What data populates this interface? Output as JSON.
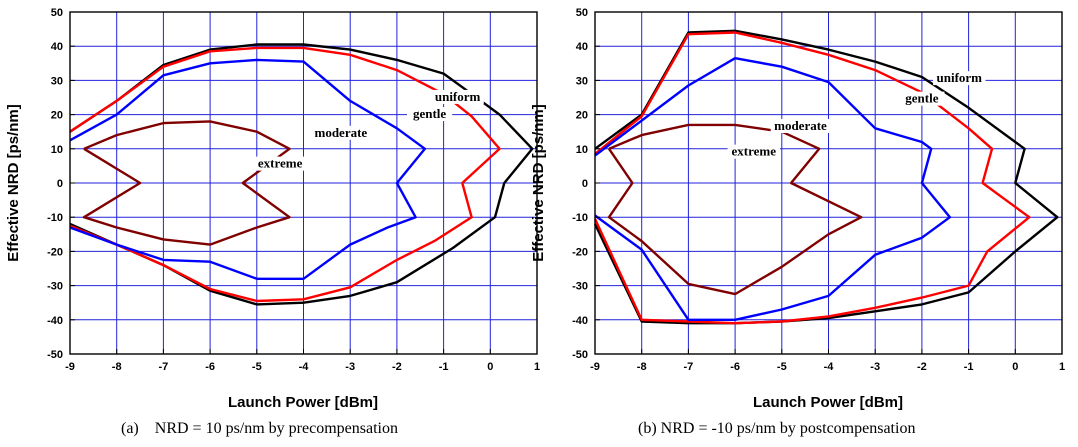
{
  "chart_data": [
    {
      "type": "line",
      "xlabel": "Launch Power [dBm]",
      "ylabel": "Effective NRD [ps/nm]",
      "xlim": [
        -9,
        1
      ],
      "ylim": [
        -50,
        50
      ],
      "xticks": [
        "-9",
        "-8",
        "-7",
        "-6",
        "-5",
        "-4",
        "-3",
        "-2",
        "-1",
        "0",
        "1"
      ],
      "yticks": [
        "50",
        "40",
        "30",
        "20",
        "10",
        "0",
        "-10",
        "-20",
        "-30",
        "-40",
        "-50"
      ],
      "grid": true,
      "caption": "(a)    NRD = 10 ps/nm by precompensation",
      "series": [
        {
          "name": "uniform",
          "color": "#000000",
          "label_at": [
            -0.7,
            24
          ],
          "points": [
            [
              -9,
              15
            ],
            [
              -8,
              24
            ],
            [
              -7,
              34.5
            ],
            [
              -6,
              39
            ],
            [
              -5,
              40.5
            ],
            [
              -4,
              40.5
            ],
            [
              -3,
              39
            ],
            [
              -2,
              36
            ],
            [
              -1,
              32
            ],
            [
              -0.6,
              28
            ],
            [
              0.2,
              20
            ],
            [
              0.9,
              10
            ],
            [
              0.3,
              0
            ],
            [
              0.1,
              -10
            ],
            [
              -0.8,
              -19
            ],
            [
              -2,
              -29
            ],
            [
              -3,
              -33
            ],
            [
              -4,
              -35
            ],
            [
              -5,
              -35.5
            ],
            [
              -6,
              -31.5
            ],
            [
              -7,
              -24
            ],
            [
              -8,
              -18
            ],
            [
              -9,
              -12
            ]
          ]
        },
        {
          "name": "gentle",
          "color": "#ff0000",
          "label_at": [
            -1.3,
            19
          ],
          "points": [
            [
              -9,
              15
            ],
            [
              -8,
              24
            ],
            [
              -7,
              34
            ],
            [
              -6,
              38.5
            ],
            [
              -5,
              39.5
            ],
            [
              -4,
              39.5
            ],
            [
              -3,
              37.5
            ],
            [
              -2,
              33
            ],
            [
              -1,
              26
            ],
            [
              -0.4,
              19.5
            ],
            [
              0.2,
              10
            ],
            [
              -0.6,
              0
            ],
            [
              -0.4,
              -10
            ],
            [
              -1.2,
              -17
            ],
            [
              -2,
              -22.5
            ],
            [
              -3,
              -30.5
            ],
            [
              -4,
              -34
            ],
            [
              -5,
              -34.5
            ],
            [
              -6,
              -31
            ],
            [
              -7,
              -24
            ],
            [
              -8,
              -18
            ],
            [
              -9,
              -12.5
            ]
          ]
        },
        {
          "name": "moderate",
          "color": "#0000ff",
          "label_at": [
            -3.2,
            13.5
          ],
          "points": [
            [
              -9,
              12.5
            ],
            [
              -8,
              20
            ],
            [
              -7,
              31.5
            ],
            [
              -6,
              35
            ],
            [
              -5,
              36
            ],
            [
              -4,
              35.5
            ],
            [
              -3,
              24
            ],
            [
              -2,
              16
            ],
            [
              -1.4,
              10
            ],
            [
              -2,
              0
            ],
            [
              -1.6,
              -10
            ],
            [
              -2.2,
              -13
            ],
            [
              -3,
              -18
            ],
            [
              -4,
              -28
            ],
            [
              -5,
              -28
            ],
            [
              -6,
              -23
            ],
            [
              -7,
              -22.5
            ],
            [
              -8,
              -18
            ],
            [
              -9,
              -13
            ]
          ]
        },
        {
          "name": "extreme",
          "color": "#800000",
          "label_at": [
            -4.5,
            4.5
          ],
          "points": [
            [
              -8.7,
              10
            ],
            [
              -8,
              14
            ],
            [
              -7,
              17.5
            ],
            [
              -6,
              18
            ],
            [
              -5,
              15
            ],
            [
              -4.3,
              10
            ],
            [
              -5.3,
              0
            ],
            [
              -4.3,
              -10
            ],
            [
              -5,
              -13
            ],
            [
              -6,
              -18
            ],
            [
              -7,
              -16.5
            ],
            [
              -8,
              -13
            ],
            [
              -8.7,
              -10
            ],
            [
              -7.5,
              0
            ],
            [
              -8.7,
              10
            ]
          ]
        }
      ]
    },
    {
      "type": "line",
      "xlabel": "Launch Power [dBm]",
      "ylabel": "Effective NRD [ps/nm]",
      "xlim": [
        -9,
        1
      ],
      "ylim": [
        -50,
        50
      ],
      "xticks": [
        "-9",
        "-8",
        "-7",
        "-6",
        "-5",
        "-4",
        "-3",
        "-2",
        "-1",
        "0",
        "1"
      ],
      "yticks": [
        "50",
        "40",
        "30",
        "20",
        "10",
        "0",
        "-10",
        "-20",
        "-30",
        "-40",
        "-50"
      ],
      "grid": true,
      "caption": "(b) NRD = -10 ps/nm by postcompensation",
      "series": [
        {
          "name": "uniform",
          "color": "#000000",
          "label_at": [
            -1.2,
            29.5
          ],
          "points": [
            [
              -9,
              10
            ],
            [
              -8,
              20
            ],
            [
              -7,
              44
            ],
            [
              -6,
              44.5
            ],
            [
              -5,
              42
            ],
            [
              -4,
              39
            ],
            [
              -3,
              35.5
            ],
            [
              -2,
              31
            ],
            [
              -1,
              22
            ],
            [
              0.2,
              10
            ],
            [
              0,
              0
            ],
            [
              0.9,
              -10
            ],
            [
              0,
              -20
            ],
            [
              -1,
              -32
            ],
            [
              -2,
              -35.5
            ],
            [
              -3,
              -37.5
            ],
            [
              -4,
              -39.5
            ],
            [
              -5,
              -40.5
            ],
            [
              -6,
              -41
            ],
            [
              -7,
              -41
            ],
            [
              -8,
              -40.5
            ],
            [
              -9,
              -12
            ]
          ]
        },
        {
          "name": "gentle",
          "color": "#ff0000",
          "label_at": [
            -2.0,
            23.5
          ],
          "points": [
            [
              -9,
              8.5
            ],
            [
              -8,
              19.5
            ],
            [
              -7,
              43.5
            ],
            [
              -6,
              44
            ],
            [
              -5,
              41
            ],
            [
              -4,
              37.5
            ],
            [
              -3,
              33
            ],
            [
              -2,
              26.5
            ],
            [
              -1,
              16
            ],
            [
              -0.5,
              10
            ],
            [
              -0.7,
              0
            ],
            [
              0.3,
              -10
            ],
            [
              -0.6,
              -20
            ],
            [
              -1,
              -30
            ],
            [
              -2,
              -33.5
            ],
            [
              -3,
              -36.5
            ],
            [
              -4,
              -39
            ],
            [
              -5,
              -40.5
            ],
            [
              -6,
              -41
            ],
            [
              -7,
              -40.5
            ],
            [
              -8,
              -40
            ],
            [
              -9,
              -10.5
            ]
          ]
        },
        {
          "name": "moderate",
          "color": "#0000ff",
          "label_at": [
            -4.6,
            15.5
          ],
          "points": [
            [
              -9,
              8
            ],
            [
              -7,
              28.5
            ],
            [
              -6,
              36.5
            ],
            [
              -5,
              34
            ],
            [
              -4,
              29.5
            ],
            [
              -3,
              16
            ],
            [
              -2,
              12
            ],
            [
              -1.8,
              10
            ],
            [
              -2,
              0
            ],
            [
              -1.4,
              -10
            ],
            [
              -2,
              -16
            ],
            [
              -3,
              -21
            ],
            [
              -4,
              -33
            ],
            [
              -5,
              -37
            ],
            [
              -6,
              -40
            ],
            [
              -7,
              -40
            ],
            [
              -8,
              -19.5
            ],
            [
              -9,
              -9.5
            ]
          ]
        },
        {
          "name": "extreme",
          "color": "#800000",
          "label_at": [
            -5.6,
            8
          ],
          "points": [
            [
              -8.7,
              10
            ],
            [
              -8,
              14
            ],
            [
              -7,
              17
            ],
            [
              -6,
              17
            ],
            [
              -5,
              15
            ],
            [
              -4.2,
              10
            ],
            [
              -4.8,
              0
            ],
            [
              -3.3,
              -10
            ],
            [
              -4,
              -15
            ],
            [
              -5,
              -24.5
            ],
            [
              -6,
              -32.5
            ],
            [
              -7,
              -29.5
            ],
            [
              -8,
              -17
            ],
            [
              -8.7,
              -10
            ],
            [
              -8.2,
              0
            ],
            [
              -8.7,
              10
            ]
          ]
        }
      ]
    }
  ]
}
